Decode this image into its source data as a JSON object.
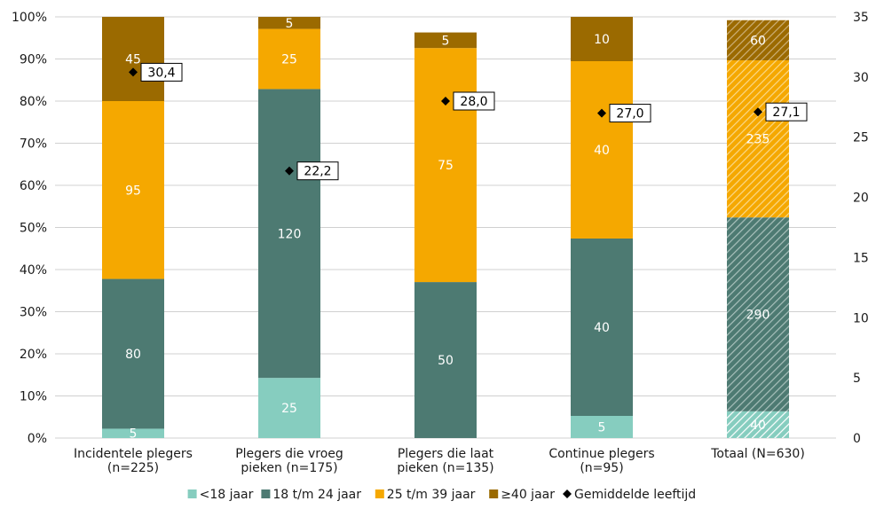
{
  "chart_data": {
    "type": "bar",
    "stacked": true,
    "normalized": true,
    "categories": [
      [
        "Incidentele plegers",
        "(n=225)"
      ],
      [
        "Plegers die vroeg",
        "pieken (n=175)"
      ],
      [
        "Plegers die laat",
        "pieken (n=135)"
      ],
      [
        "Continue plegers",
        "(n=95)"
      ],
      [
        "Totaal (N=630)"
      ]
    ],
    "totals": [
      225,
      175,
      135,
      95,
      630
    ],
    "series": [
      {
        "name": "<18 jaar",
        "color": "#86cdbf",
        "values": [
          5,
          25,
          0,
          5,
          40
        ],
        "labels": [
          "5",
          "25",
          "",
          "5",
          "40"
        ],
        "label_color": "#ffffff"
      },
      {
        "name": "18 t/m 24 jaar",
        "color": "#4d7a72",
        "values": [
          80,
          120,
          50,
          40,
          290
        ],
        "labels": [
          "80",
          "120",
          "50",
          "40",
          "290"
        ],
        "label_color": "#ffffff"
      },
      {
        "name": "25 t/m 39 jaar",
        "color": "#f5a800",
        "values": [
          95,
          25,
          75,
          40,
          235
        ],
        "labels": [
          "95",
          "25",
          "75",
          "40",
          "235"
        ],
        "label_color": "#ffffff"
      },
      {
        "name": "≥40 jaar",
        "color": "#9b6a00",
        "values": [
          45,
          5,
          5,
          10,
          60
        ],
        "labels": [
          "45",
          "5",
          "5",
          "10",
          "60"
        ],
        "label_color": "#ffffff"
      }
    ],
    "hatched_categories": [
      4
    ],
    "average": {
      "name": "Gemiddelde leeftijd",
      "values": [
        30.4,
        22.2,
        28.0,
        27.0,
        27.1
      ],
      "labels": [
        "30,4",
        "22,2",
        "28,0",
        "27,0",
        "27,1"
      ],
      "axis": "right"
    },
    "y_left": {
      "ylim": [
        0,
        100
      ],
      "ticks": [
        0,
        10,
        20,
        30,
        40,
        50,
        60,
        70,
        80,
        90,
        100
      ],
      "tick_labels": [
        "0%",
        "10%",
        "20%",
        "30%",
        "40%",
        "50%",
        "60%",
        "70%",
        "80%",
        "90%",
        "100%"
      ]
    },
    "y_right": {
      "ylim": [
        0,
        35
      ],
      "ticks": [
        0,
        5,
        10,
        15,
        20,
        25,
        30,
        35
      ],
      "tick_labels": [
        "0",
        "5",
        "10",
        "15",
        "20",
        "25",
        "30",
        "35"
      ]
    },
    "legend": {
      "position": "bottom",
      "items": [
        "<18 jaar",
        "18 t/m 24 jaar",
        "25 t/m 39 jaar",
        "≥40 jaar",
        "Gemiddelde leeftijd"
      ]
    },
    "title": "",
    "xlabel": "",
    "ylabel": ""
  }
}
